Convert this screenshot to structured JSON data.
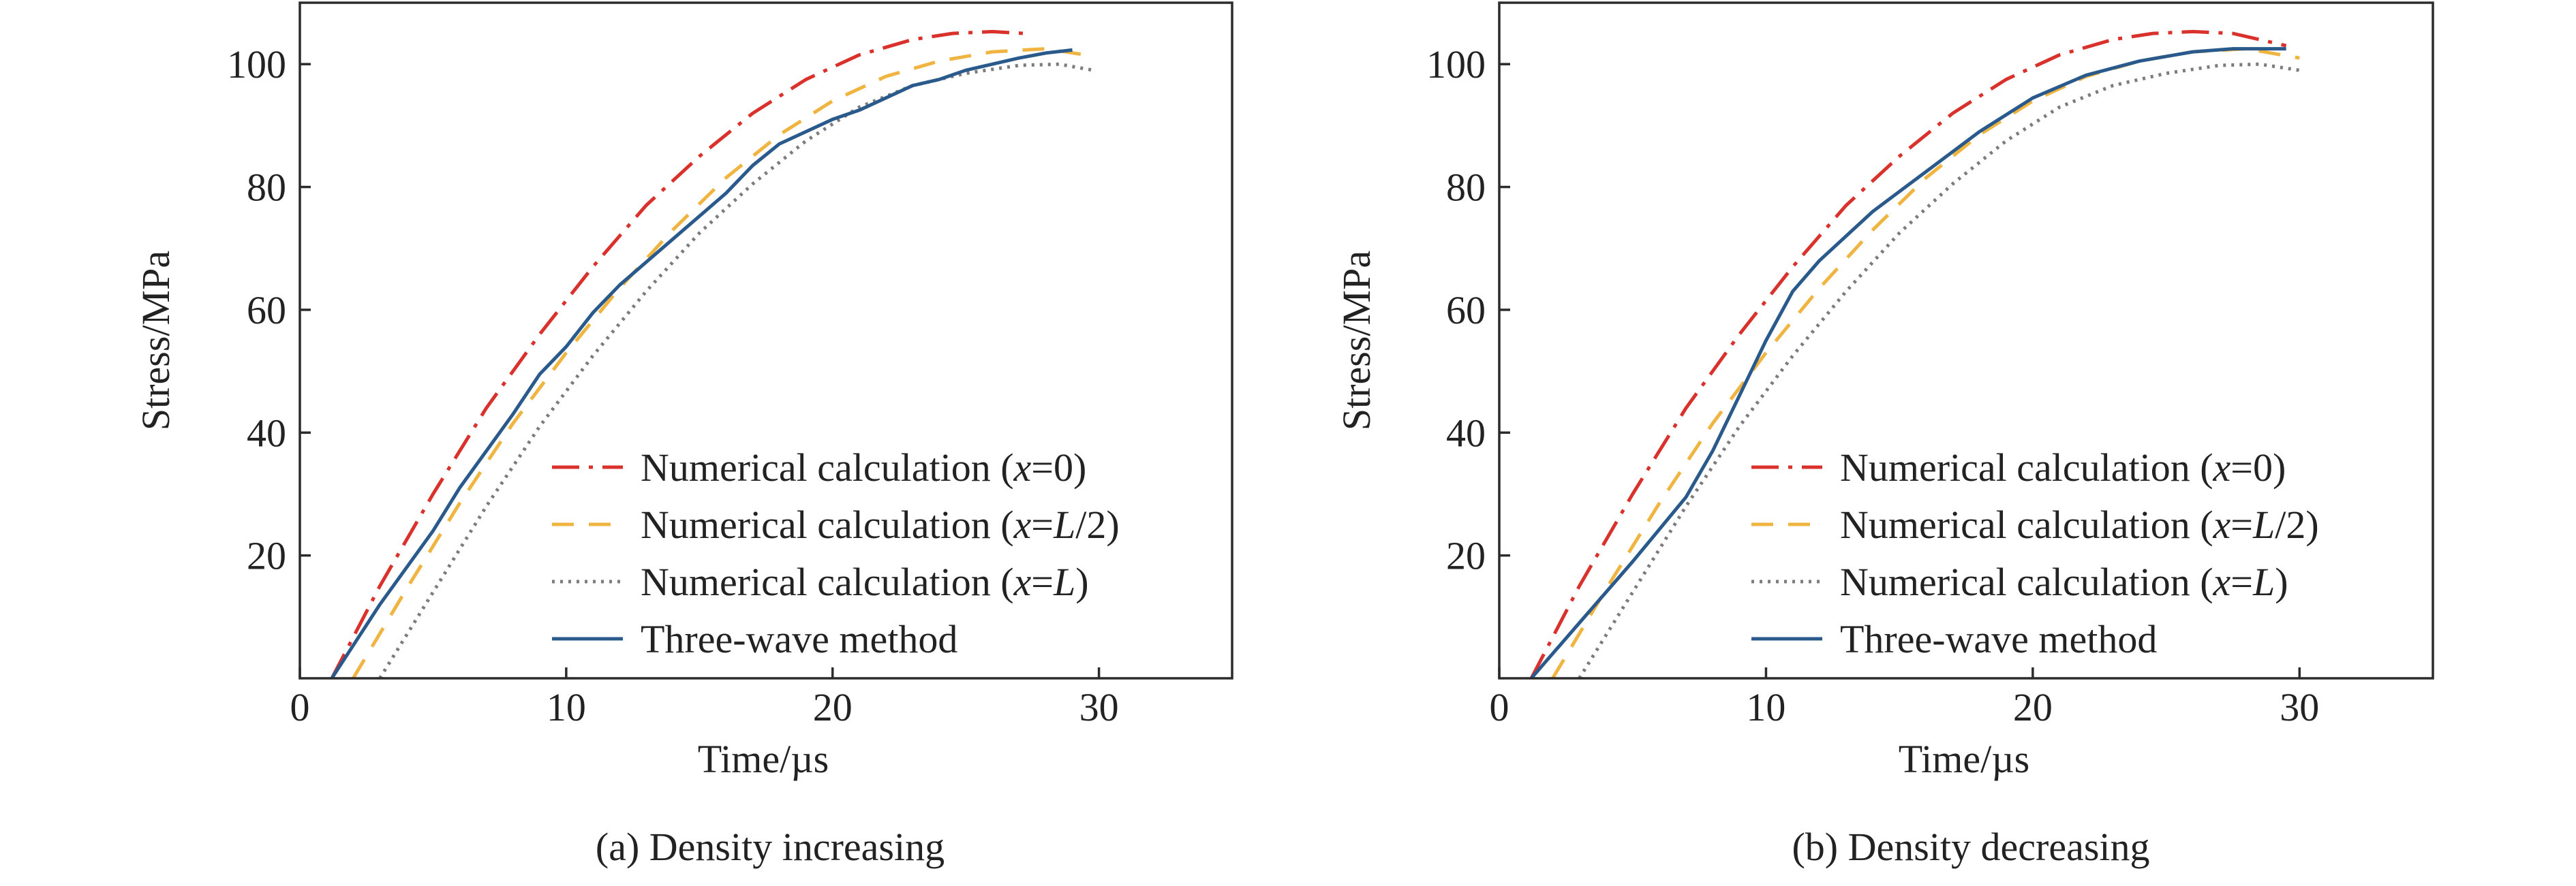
{
  "figure": {
    "panels": [
      {
        "caption": "(a) Density increasing",
        "chart_data": {
          "type": "line",
          "xlabel": "Time/µs",
          "ylabel": "Stress/MPa",
          "xlim": [
            0,
            35
          ],
          "ylim": [
            0,
            110
          ],
          "xticks": [
            0,
            10,
            20,
            30
          ],
          "yticks": [
            20,
            40,
            60,
            80,
            100
          ],
          "grid": false,
          "legend_position": "lower-right",
          "series": [
            {
              "name_parts": [
                "Numerical calculation (",
                "x",
                "=0)"
              ],
              "style": "dash-dot",
              "color": "#d9312b",
              "x": [
                1.2,
                3,
                5,
                7,
                9,
                11,
                13,
                15,
                17,
                19,
                21,
                23,
                24.5,
                26,
                27.2
              ],
              "y": [
                0,
                15,
                30,
                44,
                56,
                67,
                77,
                85,
                92,
                97.5,
                101.5,
                104,
                105,
                105.3,
                105
              ]
            },
            {
              "name_parts": [
                "Numerical calculation (",
                "x",
                "=",
                "L",
                "/2)"
              ],
              "style": "dashed",
              "color": "#f0b440",
              "x": [
                2,
                4,
                6,
                8,
                10,
                12,
                14,
                16,
                18,
                20,
                22,
                24,
                26,
                28,
                29.5
              ],
              "y": [
                0,
                14.5,
                28.5,
                41.5,
                53,
                63.5,
                73,
                81.5,
                88.5,
                94,
                98,
                100.5,
                102,
                102.5,
                101.5
              ]
            },
            {
              "name_parts": [
                "Numerical calculation (",
                "x",
                "=",
                "L",
                ")"
              ],
              "style": "dotted",
              "color": "#7c7c80",
              "x": [
                3,
                5,
                7,
                9,
                11,
                13,
                15,
                17,
                19,
                21,
                23,
                25,
                27,
                28.5,
                29.8
              ],
              "y": [
                0,
                14,
                28,
                41,
                52.5,
                63,
                72.5,
                80.5,
                87.5,
                93,
                96.5,
                98.5,
                99.8,
                100,
                99
              ]
            },
            {
              "name_parts": [
                "Three-wave method"
              ],
              "style": "solid",
              "color": "#2a5a8c",
              "x": [
                1.2,
                3,
                5,
                6,
                8,
                9,
                10,
                11,
                12,
                14,
                16,
                17,
                18,
                20,
                21,
                22,
                23,
                24,
                25,
                26,
                27,
                28,
                29
              ],
              "y": [
                0,
                12,
                24,
                31,
                43,
                49.5,
                54,
                59.5,
                64,
                71.5,
                79,
                83.5,
                87,
                91,
                92.5,
                94.5,
                96.5,
                97.5,
                99,
                100,
                101,
                101.8,
                102.3
              ]
            }
          ]
        }
      },
      {
        "caption": "(b) Density decreasing",
        "chart_data": {
          "type": "line",
          "xlabel": "Time/µs",
          "ylabel": "Stress/MPa",
          "xlim": [
            0,
            35
          ],
          "ylim": [
            0,
            110
          ],
          "xticks": [
            0,
            10,
            20,
            30
          ],
          "yticks": [
            20,
            40,
            60,
            80,
            100
          ],
          "grid": false,
          "legend_position": "lower-right",
          "series": [
            {
              "name_parts": [
                "Numerical calculation (",
                "x",
                "=0)"
              ],
              "style": "dash-dot",
              "color": "#d9312b",
              "x": [
                1.2,
                3,
                5,
                7,
                9,
                11,
                13,
                15,
                17,
                19,
                21,
                23,
                24.5,
                26,
                27.5,
                29.5
              ],
              "y": [
                0,
                15,
                30,
                44,
                56,
                67,
                77,
                85,
                92,
                97.5,
                101.5,
                104,
                105,
                105.3,
                105,
                103
              ]
            },
            {
              "name_parts": [
                "Numerical calculation (",
                "x",
                "=",
                "L",
                "/2)"
              ],
              "style": "dashed",
              "color": "#f0b440",
              "x": [
                2,
                4,
                6,
                8,
                10,
                12,
                14,
                16,
                18,
                20,
                22,
                24,
                26,
                28,
                30
              ],
              "y": [
                0,
                14.5,
                28.5,
                41.5,
                53,
                63.5,
                73,
                81.5,
                88.5,
                94,
                98,
                100.5,
                102,
                102.5,
                101
              ]
            },
            {
              "name_parts": [
                "Numerical calculation (",
                "x",
                "=",
                "L",
                ")"
              ],
              "style": "dotted",
              "color": "#7c7c80",
              "x": [
                3,
                5,
                7,
                9,
                11,
                13,
                15,
                17,
                19,
                21,
                23,
                25,
                27,
                28.5,
                30
              ],
              "y": [
                0,
                14,
                28,
                41,
                52.5,
                63,
                72.5,
                80.5,
                87.5,
                93,
                96.5,
                98.5,
                99.8,
                100,
                99
              ]
            },
            {
              "name_parts": [
                "Three-wave method"
              ],
              "style": "solid",
              "color": "#2a5a8c",
              "x": [
                1.2,
                3,
                5,
                7,
                8,
                9,
                10,
                11,
                12,
                14,
                16,
                18,
                20,
                22,
                24,
                26,
                27.5,
                29.5
              ],
              "y": [
                0,
                9,
                19,
                29.5,
                37,
                46,
                55,
                63,
                68,
                76,
                82.5,
                89,
                94.5,
                98.2,
                100.5,
                102,
                102.5,
                102.5
              ]
            }
          ]
        }
      }
    ]
  }
}
